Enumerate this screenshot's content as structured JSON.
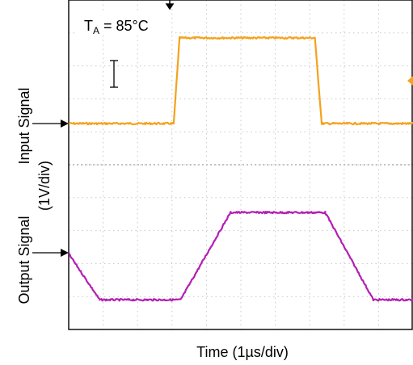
{
  "chart_data": {
    "type": "line",
    "title": "",
    "annotation": {
      "prefix": "T",
      "subscript": "A",
      "suffix": " = 85°C"
    },
    "xlabel": "Time (1µs/div)",
    "ylabel_lines": [
      "(1V/div)",
      "Output Signal",
      "Input Signal"
    ],
    "x_unit": "div",
    "y_unit": "div",
    "xlim": [
      0,
      10
    ],
    "ylim": [
      0,
      10
    ],
    "grid": true,
    "series": [
      {
        "name": "Input Signal",
        "color": "#F5A21C",
        "x": [
          0,
          3.05,
          3.22,
          7.15,
          7.35,
          10
        ],
        "y": [
          6.25,
          6.25,
          8.85,
          8.85,
          6.25,
          6.25
        ]
      },
      {
        "name": "Output Signal",
        "color": "#B31FB3",
        "x": [
          0,
          0.9,
          3.25,
          4.7,
          7.45,
          8.85,
          10
        ],
        "y": [
          2.3,
          0.9,
          0.9,
          3.55,
          3.55,
          0.9,
          0.9
        ]
      }
    ]
  }
}
